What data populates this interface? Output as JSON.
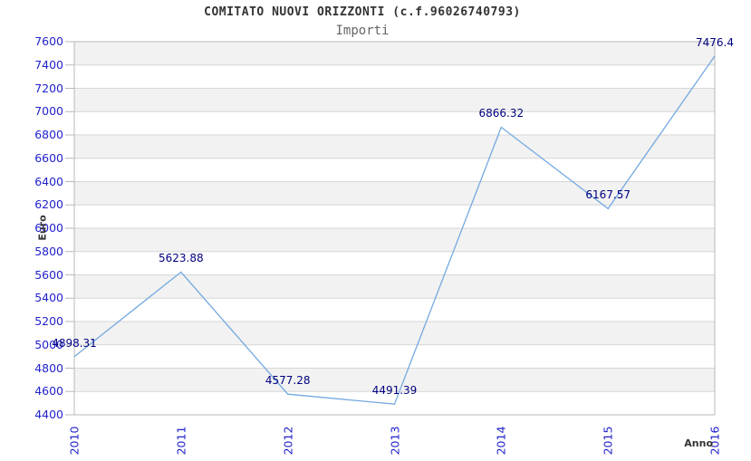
{
  "chart_data": {
    "type": "line",
    "title": "COMITATO NUOVI ORIZZONTI (c.f.96026740793)",
    "subtitle": "Importi",
    "xlabel": "Anno",
    "ylabel": "Euro",
    "categories": [
      "2010",
      "2011",
      "2012",
      "2013",
      "2014",
      "2015",
      "2016"
    ],
    "values": [
      4898.31,
      5623.88,
      4577.28,
      4491.39,
      6866.32,
      6167.57,
      7476.4
    ],
    "point_labels": [
      "4898.31",
      "5623.88",
      "4577.28",
      "4491.39",
      "6866.32",
      "6167.57",
      "7476.4"
    ],
    "ylim": [
      4400,
      7600
    ],
    "ytick_step": 200,
    "grid": "horizontal-bands",
    "legend": "none",
    "colors": {
      "line": "#74a9e0",
      "point_label": "#000080",
      "tick_label": "#2222cc",
      "band": "#f2f2f2",
      "band_alt": "#ffffff",
      "gridline": "#d6d6d6",
      "border": "#b8b8b8",
      "title": "#333333",
      "subtitle": "#666666",
      "axis_title": "#333333"
    }
  }
}
